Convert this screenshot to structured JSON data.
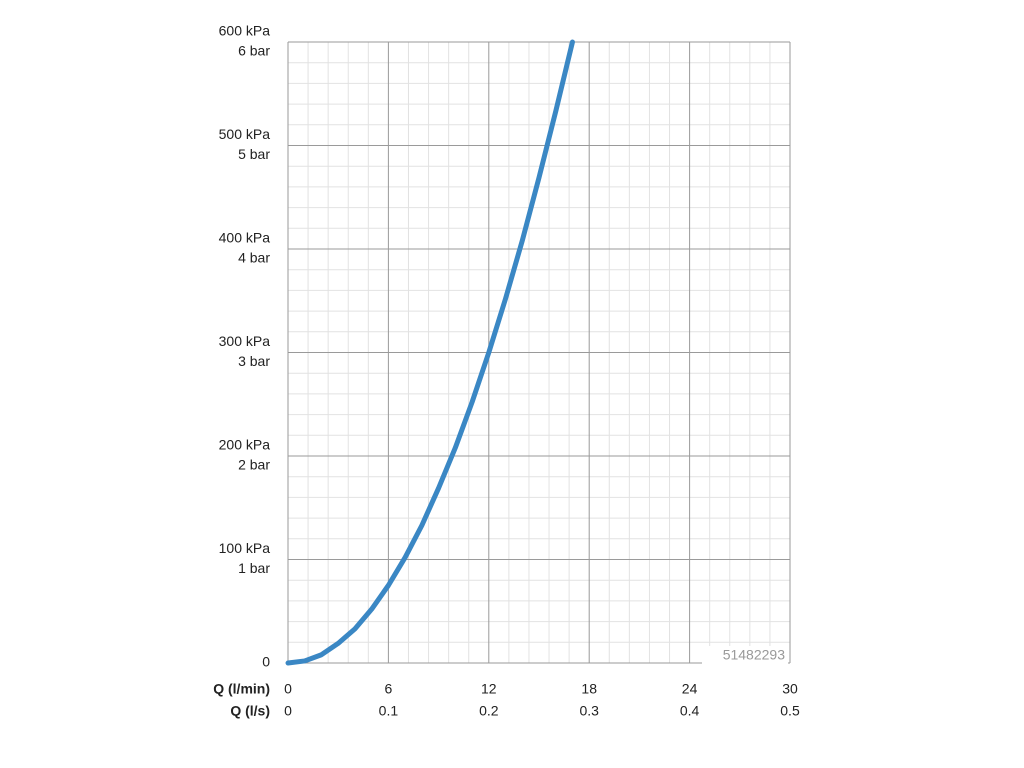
{
  "chart_data": {
    "type": "line",
    "xlabel": "Q (l/min)",
    "x2label": "Q (l/s)",
    "annotation": "51482293",
    "x": [
      0,
      1,
      2,
      3,
      4,
      5,
      6,
      7,
      8,
      9,
      10,
      11,
      12,
      13,
      14,
      15,
      16,
      17
    ],
    "series": [
      {
        "color": "#3a87c4",
        "values": [
          0,
          2,
          8,
          19,
          33,
          52,
          75,
          102,
          133,
          169,
          208,
          252,
          300,
          352,
          408,
          469,
          533,
          600
        ]
      }
    ],
    "xlim": [
      0,
      30
    ],
    "xticks": [
      0,
      6,
      12,
      18,
      24,
      30
    ],
    "x2lim": [
      0,
      0.5
    ],
    "x2ticks": [
      0,
      0.1,
      0.2,
      0.3,
      0.4,
      0.5
    ],
    "ylim": [
      0,
      600
    ],
    "yticks": [
      0,
      {
        "value": 100,
        "label": "100 kPa"
      },
      {
        "value": 200,
        "label": "200 kPa"
      },
      {
        "value": 300,
        "label": "300 kPa"
      },
      {
        "value": 400,
        "label": "400 kPa"
      },
      {
        "value": 500,
        "label": "500 kPa"
      },
      {
        "value": 600,
        "label": "600 kPa"
      }
    ],
    "y2lim": [
      0,
      6
    ],
    "y2ticks": [
      {
        "value": 1,
        "label": "1 bar"
      },
      {
        "value": 2,
        "label": "2 bar"
      },
      {
        "value": 3,
        "label": "3 bar"
      },
      {
        "value": 4,
        "label": "4 bar"
      },
      {
        "value": 5,
        "label": "5 bar"
      },
      {
        "value": 6,
        "label": "6 bar"
      }
    ],
    "grid": true,
    "minor_grid": true
  }
}
